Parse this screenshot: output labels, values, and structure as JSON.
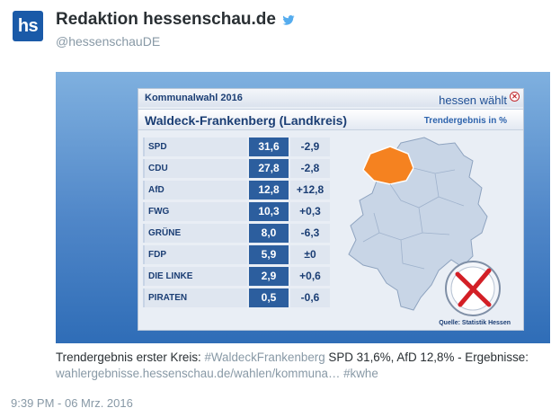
{
  "tweet": {
    "avatar_text": "hs",
    "display_name": "Redaktion hessenschau.de",
    "handle": "@hessenschauDE",
    "caption_text": "Trendergebnis erster Kreis: ",
    "hashtag_1": "#WaldeckFrankenberg",
    "caption_mid": " SPD 31,6%, AfD 12,8% - Ergebnisse: ",
    "link": "wahlergebnisse.hessenschau.de/wahlen/kommuna…",
    "hashtag_2": "#kwhe",
    "timestamp": "9:39 PM - 06 Mrz. 2016"
  },
  "graphic": {
    "election": "Kommunalwahl 2016",
    "brand": "hessen wählt",
    "region": "Waldeck-Frankenberg (Landkreis)",
    "trend_label": "Trendergebnis in %",
    "source": "Quelle: Statistik Hessen",
    "rows": [
      {
        "party": "SPD",
        "value": "31,6",
        "diff": "-2,9"
      },
      {
        "party": "CDU",
        "value": "27,8",
        "diff": "-2,8"
      },
      {
        "party": "AfD",
        "value": "12,8",
        "diff": "+12,8"
      },
      {
        "party": "FWG",
        "value": "10,3",
        "diff": "+0,3"
      },
      {
        "party": "GRÜNE",
        "value": "8,0",
        "diff": "-6,3"
      },
      {
        "party": "FDP",
        "value": "5,9",
        "diff": "±0"
      },
      {
        "party": "DIE LINKE",
        "value": "2,9",
        "diff": "+0,6"
      },
      {
        "party": "PIRATEN",
        "value": "0,5",
        "diff": "-0,6"
      }
    ]
  },
  "colors": {
    "highlight_region": "#f58220",
    "map_fill": "#c8d5e6",
    "brand_blue": "#1a5aa8",
    "twitter_blue": "#55acee"
  }
}
